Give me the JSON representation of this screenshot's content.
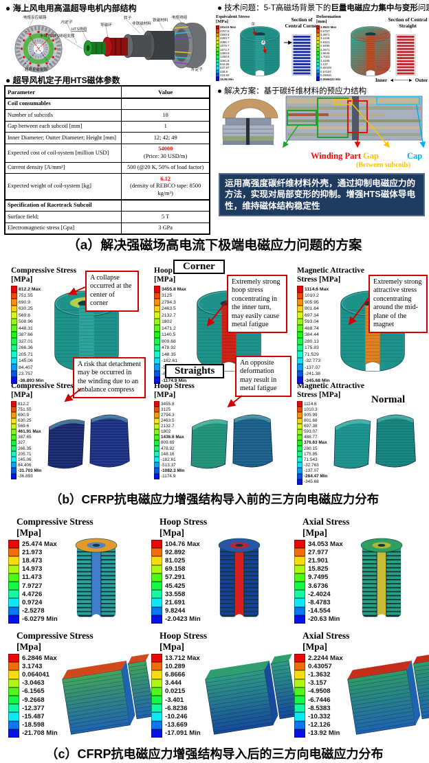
{
  "section_a": {
    "motor_title": "●  海上风电用高温超导电机内部结构",
    "motor_labels": [
      "电枢反应磁路",
      "内定子",
      "HTS绕组",
      "导磁环",
      "转子",
      "非铁磁材料",
      "铁磁材料",
      "电枢绕组",
      "半导热HTS绕组支撑",
      "超导励磁磁路",
      "外定子"
    ],
    "table_title": "●  超导风机定子用HTS磁体参数",
    "table": {
      "headers": [
        "Parameter",
        "Value"
      ],
      "rows": [
        {
          "param": "Coil consumables",
          "bold": true,
          "value": ""
        },
        {
          "param": "Number of subcoils",
          "value": "18"
        },
        {
          "param": "Gap between each subcoil [mm]",
          "value": "1"
        },
        {
          "param": "Inner Diameter; Outter Diameter; Height [mm]",
          "value": "12; 42; 49"
        },
        {
          "param": "Expected cost of coil-system [million USD]",
          "value_red": "54000",
          "value_sub": "(Price: 30 USD/m)"
        },
        {
          "param": "Current density [A/mm²]",
          "value": "500 (@20 K, 50% of load factor)"
        },
        {
          "param": "Expected weight of coil-system [kg]",
          "value_red": "6.12",
          "value_sub": "(density of REBCO tape: 8500 kg/m³)"
        },
        {
          "param": "Specification of Racetrack Subcoil",
          "bold": true,
          "value": "",
          "thick": true
        },
        {
          "param": "Surface field;",
          "value": "5 T"
        },
        {
          "param": "Electromagnetic stress [Gpa]",
          "value": "3 GPa"
        }
      ]
    },
    "problem": {
      "prefix": "●  技术问题：5-T高磁场背景下的",
      "bold": "巨量电磁应力集中与变形",
      "suffix": "问题",
      "equivalent": {
        "title": "Equivalent Stress",
        "unit": "[MPa]",
        "scale": [
          "2914.6 Max",
          "2707.6",
          "2500.6",
          "2293.7",
          "2086.7",
          "1879.7",
          "1672.7",
          "1465.8",
          "1258.8",
          "1051.8",
          "844.86",
          "637.87",
          "430.9",
          "223.92",
          "16.95 Min"
        ],
        "marks": [
          "①",
          "②"
        ],
        "section_label": "Section of Central Corner"
      },
      "deformation": {
        "title": "Deformation",
        "unit": "[mm]",
        "scale": [
          "3.9622 Max",
          "3.6797",
          "3.3971",
          "3.1146",
          "2.8321",
          "2.5496",
          "2.2671",
          "1.9846",
          "1.7021",
          "1.4195",
          "1.137",
          "0.85449",
          "0.57197",
          "0.28946",
          "0.0069422 Min"
        ],
        "section_label": "Section of Central Straight",
        "inner_label": "Inner",
        "arrow": "◄────►",
        "outer_label": "Outer"
      }
    },
    "solution": {
      "title": "●  解决方案：基于碳纤维材料的预应力结构",
      "winding_label": "Winding Part",
      "gap_label": "Gap",
      "gap_sub": "(Between subcoils)",
      "cap_label": "Cap"
    },
    "highlight": "运用高强度碳纤维材料外壳，通过抑制电磁应力的方法，实现对局部变形的抑制。增强HTS磁体导电性，维持磁体结构稳定性",
    "caption": "（a）解决强磁场高电流下极端电磁应力问题的方案"
  },
  "section_b": {
    "corner_label": "Corner",
    "straights_label": "Straights",
    "normal_label": "Normal",
    "panels_top": [
      {
        "title": "Compressive Stress",
        "unit": "[MPa]",
        "scale": [
          "812.2 Max",
          "751.55",
          "690.9",
          "630.25",
          "569.6",
          "508.96",
          "448.31",
          "387.66",
          "327.01",
          "266.36",
          "205.71",
          "145.06",
          "84.407",
          "23.757",
          "-36.893 Min"
        ]
      },
      {
        "title": "Hoop Stress",
        "unit": "[MPa]",
        "scale": [
          "3455.8 Max",
          "3125",
          "2794.3",
          "2463.5",
          "2132.7",
          "1802",
          "1471.2",
          "1140.5",
          "809.68",
          "478.92",
          "148.15",
          "-182.61",
          "-513.38",
          "-844.15",
          "-1174.9 Min"
        ]
      },
      {
        "title": "Magnetic Attractive",
        "unit": "Stress [MPa]",
        "scale": [
          "1114.6 Max",
          "1010.2",
          "905.95",
          "801.64",
          "697.34",
          "593.04",
          "488.74",
          "384.44",
          "280.13",
          "175.83",
          "71.529",
          "-32.773",
          "-137.07",
          "-241.38",
          "-345.68 Min"
        ]
      }
    ],
    "panels_bottom": [
      {
        "title": "Compressive Stress",
        "unit": "[MPa]",
        "scale": [
          "812.2",
          "751.55",
          "690.9",
          "630.25",
          "569.6",
          "461.91 Max",
          "387.65",
          "327",
          "266.35",
          "205.71",
          "145.06",
          "84.406",
          "-31.703 Min",
          "-36.893"
        ]
      },
      {
        "title": "Hoop Stress",
        "unit": "[MPa]",
        "scale": [
          "3455.8",
          "3125",
          "2794.3",
          "2463.5",
          "2132.7",
          "1802",
          "1436.6 Max",
          "809.69",
          "478.92",
          "148.16",
          "-182.61",
          "-513.37",
          "-1082.3 Min",
          "-1174.9"
        ]
      },
      {
        "title": "Magnetic Attractive",
        "unit": "Stress [MPa]",
        "scale": [
          "1114.6",
          "1010.3",
          "905.99",
          "801.68",
          "697.38",
          "593.07",
          "488.77",
          "376.63 Max",
          "280.15",
          "175.85",
          "71.543",
          "-32.763",
          "-137.07",
          "-284.47 Min",
          "-345.68"
        ]
      }
    ],
    "annotations": [
      "A collapse occurred at the center of corner",
      "Extremely strong hoop stress concentrating in the inner turn, may easily cause metal fatigue",
      "Extremely strong attractive stress concentrating around the mid-plane of the magnet",
      "A risk that detachment may be occurred in the winding due to an unbalance compress",
      "An opposite deformation may result in metal fatigue"
    ],
    "caption": "（b）CFRP抗电磁应力增强结构导入前的三方向电磁应力分布"
  },
  "section_c": {
    "panels_top": [
      {
        "title": "Compressive Stress",
        "unit": "[Mpa]",
        "scale": [
          "25.474 Max",
          "21.973",
          "18.473",
          "14.973",
          "11.473",
          "7.9727",
          "4.4726",
          "0.9724",
          "-2.5278",
          "-6.0279 Min"
        ]
      },
      {
        "title": "Hoop Stress",
        "unit": "[Mpa]",
        "scale": [
          "104.76 Max",
          "92.892",
          "81.025",
          "69.158",
          "57.291",
          "45.425",
          "33.558",
          "21.691",
          "9.8244",
          "-2.0423 Min"
        ]
      },
      {
        "title": "Axial Stress",
        "unit": "[Mpa]",
        "scale": [
          "34.053 Max",
          "27.977",
          "21.901",
          "15.825",
          "9.7495",
          "3.6736",
          "-2.4024",
          "-8.4783",
          "-14.554",
          "-20.63 Min"
        ]
      }
    ],
    "panels_bottom": [
      {
        "title": "Compressive Stress",
        "unit": "[Mpa]",
        "scale": [
          "6.2846 Max",
          "3.1743",
          "0.064041",
          "-3.0463",
          "-6.1565",
          "-9.2668",
          "-12.377",
          "-15.487",
          "-18.598",
          "-21.708 Min"
        ]
      },
      {
        "title": "Hoop Stress",
        "unit": "[Mpa]",
        "scale": [
          "13.712 Max",
          "10.289",
          "6.8666",
          "3.444",
          "0.0215",
          "-3.401",
          "-6.8236",
          "-10.246",
          "-13.669",
          "-17.091 Min"
        ]
      },
      {
        "title": "Axial Stress",
        "unit": "[Mpa]",
        "scale": [
          "2.2244 Max",
          "0.43057",
          "-1.3632",
          "-3.157",
          "-4.9508",
          "-6.7446",
          "-8.5383",
          "-10.332",
          "-12.126",
          "-13.92 Min"
        ]
      }
    ],
    "caption": "（c）CFRP抗电磁应力增强结构导入后的三方向电磁应力分布"
  }
}
